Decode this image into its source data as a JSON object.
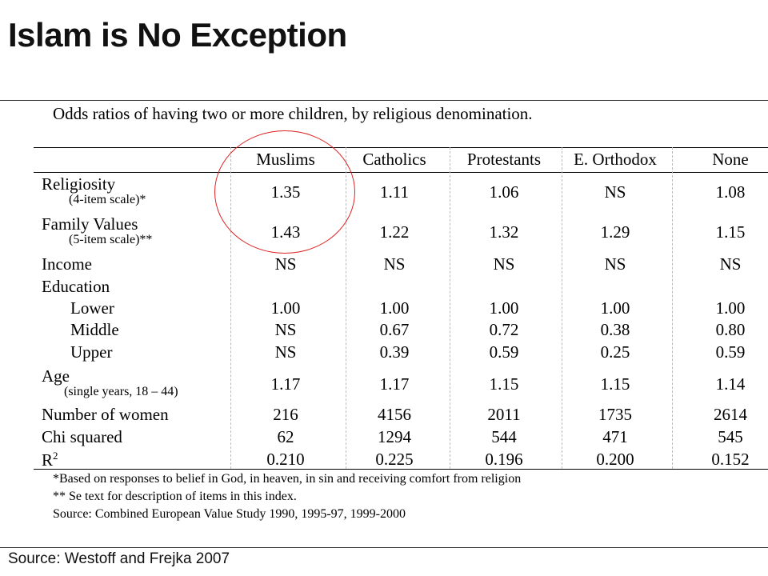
{
  "slide": {
    "title": "Islam is No Exception",
    "source": "Source: Westoff and Frejka 2007"
  },
  "table": {
    "caption": "Odds ratios of having two or more children, by religious denomination.",
    "columns": [
      "Muslims",
      "Catholics",
      "Protestants",
      "E. Orthodox",
      "None"
    ],
    "rows": [
      {
        "label": "Religiosity",
        "sub": "(4-item scale)*",
        "values": [
          "1.35",
          "1.11",
          "1.06",
          "NS",
          "1.08"
        ]
      },
      {
        "label": "Family Values",
        "sub": "(5-item scale)**",
        "values": [
          "1.43",
          "1.22",
          "1.32",
          "1.29",
          "1.15"
        ]
      },
      {
        "label": "Income",
        "sub": "",
        "values": [
          "NS",
          "NS",
          "NS",
          "NS",
          "NS"
        ]
      },
      {
        "label": "Education",
        "sub": "",
        "values": [
          "",
          "",
          "",
          "",
          ""
        ]
      },
      {
        "label": "Lower",
        "sub": "",
        "values": [
          "1.00",
          "1.00",
          "1.00",
          "1.00",
          "1.00"
        ]
      },
      {
        "label": "Middle",
        "sub": "",
        "values": [
          "NS",
          "0.67",
          "0.72",
          "0.38",
          "0.80"
        ]
      },
      {
        "label": "Upper",
        "sub": "",
        "values": [
          "NS",
          "0.39",
          "0.59",
          "0.25",
          "0.59"
        ]
      },
      {
        "label": "Age",
        "sub": "(single years, 18 – 44)",
        "values": [
          "1.17",
          "1.17",
          "1.15",
          "1.15",
          "1.14"
        ]
      },
      {
        "label": "Number of women",
        "sub": "",
        "values": [
          "216",
          "4156",
          "2011",
          "1735",
          "2614"
        ]
      },
      {
        "label": "Chi squared",
        "sub": "",
        "values": [
          "62",
          "1294",
          "544",
          "471",
          "545"
        ]
      },
      {
        "label": "R",
        "sup": "2",
        "sub": "",
        "values": [
          "0.210",
          "0.225",
          "0.196",
          "0.200",
          "0.152"
        ]
      }
    ],
    "notes": [
      "*Based on responses to belief in God, in heaven, in sin and receiving comfort from religion",
      "** Se text for description of items in this index.",
      "Source: Combined European Value Study 1990, 1995-97, 1999-2000"
    ]
  },
  "highlight": {
    "color": "#e02020",
    "target": "Muslims column, Religiosity and Family Values"
  }
}
